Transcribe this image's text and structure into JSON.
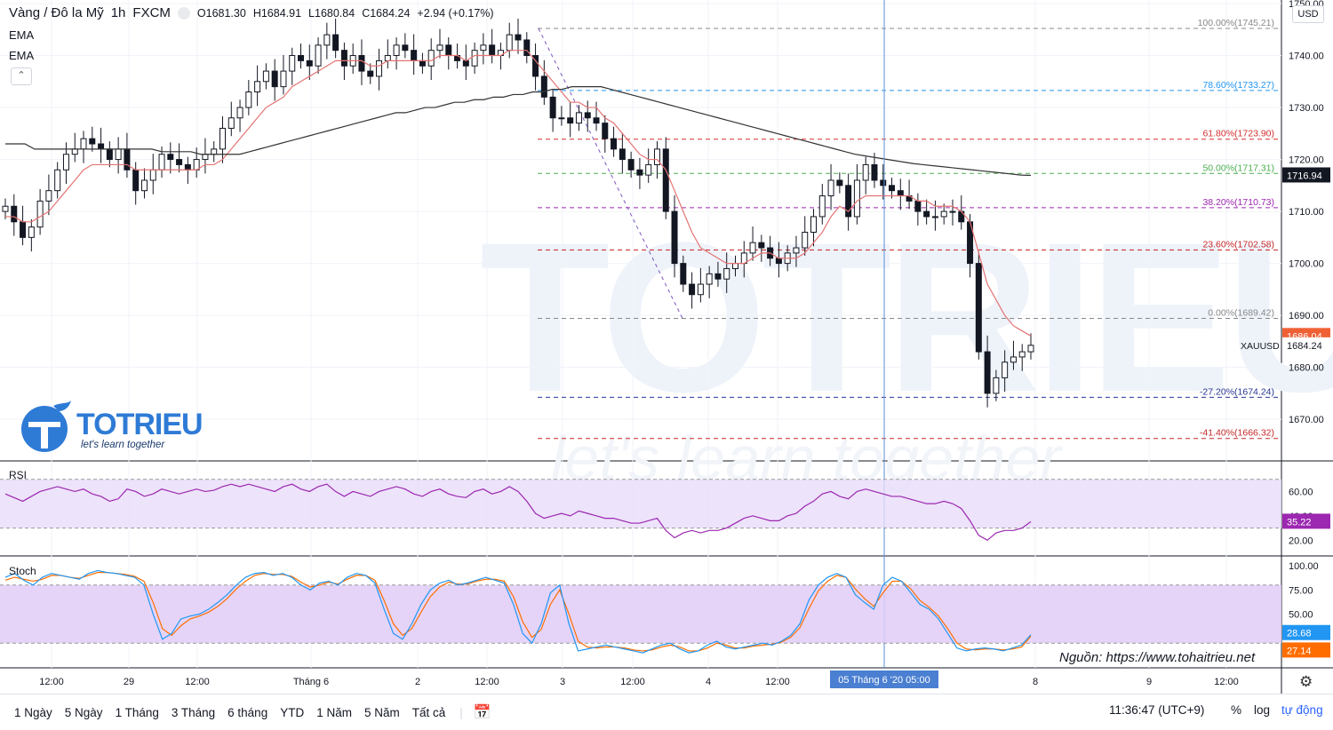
{
  "header": {
    "symbol_name": "Vàng / Đô la Mỹ",
    "interval": "1h",
    "source": "FXCM",
    "open": "O1681.30",
    "high": "H1684.91",
    "low": "L1680.84",
    "close": "C1684.24",
    "change": "+2.94 (+0.17%)"
  },
  "indicators": [
    "EMA",
    "EMA"
  ],
  "currency": "USD",
  "watermark": {
    "brand": "TOTRIEU",
    "tagline": "let's learn together"
  },
  "logo": {
    "brand": "TOTRIEU",
    "tagline": "let's learn together"
  },
  "source_note": "Nguồn: https://www.tohaitrieu.net",
  "toolbar": {
    "ranges": [
      "1 Ngày",
      "5 Ngày",
      "1 Tháng",
      "3 Tháng",
      "6 tháng",
      "YTD",
      "1 Năm",
      "5 Năm",
      "Tất cả"
    ],
    "time": "11:36:47 (UTC+9)",
    "percent": "%",
    "log": "log",
    "auto": "tự động"
  },
  "colors": {
    "up": "#ffffff",
    "down": "#131722",
    "ema_fast": "#e57373",
    "ema_slow": "#333333",
    "rsi": "#9c27b0",
    "rsi_bg": "#e9dcfa",
    "stoch_k": "#2196f3",
    "stoch_d": "#ff6d00",
    "stoch_bg": "#e1cdf7",
    "crosshair": "#5b8fd6",
    "price_tag": "#f06035",
    "rsi_tag": "#9c27b0"
  },
  "chart_data": {
    "type": "candlestick",
    "price_axis": {
      "ticks": [
        "1750.00",
        "1740.00",
        "1730.00",
        "1720.00",
        "1710.00",
        "1700.00",
        "1690.00",
        "1680.00",
        "1670.00"
      ],
      "range": [
        1662,
        1750
      ]
    },
    "time_axis": {
      "labels": [
        "12:00",
        "29",
        "12:00",
        "Tháng 6",
        "2",
        "12:00",
        "3",
        "12:00",
        "4",
        "12:00",
        "8",
        "9",
        "12:00"
      ],
      "crosshair_label": "05 Tháng 6 '20   05:00"
    },
    "price_tags": {
      "ema_slow": "1716.94",
      "ema_fast": "1686.04",
      "last_symbol": "XAUUSD",
      "last_price": "1684.24"
    },
    "fibonacci": [
      {
        "label": "100.00%(1745.21)",
        "price": 1745.21,
        "color": "#888888"
      },
      {
        "label": "78.60%(1733.27)",
        "price": 1733.27,
        "color": "#2196f3"
      },
      {
        "label": "61.80%(1723.90)",
        "price": 1723.9,
        "color": "#d32f2f"
      },
      {
        "label": "50.00%(1717.31)",
        "price": 1717.31,
        "color": "#4caf50"
      },
      {
        "label": "38.20%(1710.73)",
        "price": 1710.73,
        "color": "#9c27b0"
      },
      {
        "label": "23.60%(1702.58)",
        "price": 1702.58,
        "color": "#c62828"
      },
      {
        "label": "0.00%(1689.42)",
        "price": 1689.42,
        "color": "#888888"
      },
      {
        "label": "-27.20%(1674.24)",
        "price": 1674.24,
        "color": "#283593"
      },
      {
        "label": "-41.40%(1666.32)",
        "price": 1666.32,
        "color": "#c62828"
      }
    ],
    "close_series": [
      1711,
      1708,
      1705,
      1707,
      1712,
      1714,
      1718,
      1721,
      1722,
      1724,
      1723,
      1722,
      1720,
      1722,
      1718,
      1714,
      1716,
      1718,
      1721,
      1720,
      1719,
      1718,
      1720,
      1721,
      1722,
      1726,
      1728,
      1730,
      1733,
      1735,
      1737,
      1734,
      1737,
      1740,
      1739,
      1738,
      1742,
      1744,
      1741,
      1738,
      1740,
      1737,
      1736,
      1739,
      1740,
      1742,
      1741,
      1739,
      1738,
      1741,
      1742,
      1740,
      1739,
      1738,
      1741,
      1742,
      1740,
      1741,
      1744,
      1743,
      1740,
      1736,
      1732,
      1728,
      1728,
      1727,
      1729,
      1728,
      1727,
      1724,
      1722,
      1720,
      1718,
      1717,
      1719,
      1722,
      1710,
      1700,
      1696,
      1694,
      1696,
      1698,
      1697,
      1699,
      1700,
      1702,
      1704,
      1703,
      1701,
      1700,
      1702,
      1703,
      1706,
      1709,
      1713,
      1716,
      1715,
      1709,
      1716,
      1719,
      1716,
      1715,
      1714,
      1713,
      1712,
      1710,
      1709,
      1709,
      1710,
      1710,
      1708,
      1700,
      1683,
      1675,
      1678,
      1681,
      1682,
      1683,
      1684.24
    ],
    "ema_fast_series": [
      1709,
      1709,
      1708,
      1708,
      1709,
      1710,
      1712,
      1714,
      1716,
      1718,
      1719,
      1719,
      1719,
      1719,
      1719,
      1718,
      1718,
      1718,
      1718,
      1718,
      1718,
      1718,
      1718,
      1719,
      1719,
      1720,
      1722,
      1724,
      1726,
      1728,
      1730,
      1731,
      1732,
      1734,
      1735,
      1736,
      1737,
      1738,
      1739,
      1739,
      1739,
      1739,
      1738,
      1738,
      1739,
      1739,
      1739,
      1739,
      1739,
      1739,
      1740,
      1740,
      1740,
      1739,
      1740,
      1740,
      1740,
      1740,
      1741,
      1741,
      1741,
      1739,
      1737,
      1735,
      1733,
      1731,
      1731,
      1730,
      1730,
      1728,
      1727,
      1725,
      1723,
      1721,
      1720,
      1720,
      1718,
      1714,
      1710,
      1706,
      1703,
      1702,
      1701,
      1700,
      1700,
      1700,
      1701,
      1702,
      1702,
      1701,
      1701,
      1701,
      1702,
      1704,
      1706,
      1709,
      1711,
      1710,
      1712,
      1713,
      1713,
      1713,
      1713,
      1713,
      1713,
      1712,
      1712,
      1711,
      1711,
      1711,
      1710,
      1708,
      1702,
      1696,
      1693,
      1690,
      1688,
      1687,
      1686.04
    ],
    "ema_slow_series": [
      1723,
      1723,
      1723,
      1722,
      1722,
      1722,
      1722,
      1722,
      1722,
      1722,
      1722,
      1722,
      1722,
      1722,
      1722,
      1722,
      1721.5,
      1721.5,
      1721.5,
      1721.5,
      1721,
      1721,
      1721,
      1721,
      1721,
      1721.5,
      1722,
      1722.5,
      1723,
      1723.5,
      1724,
      1724.5,
      1725,
      1725.5,
      1726,
      1726.5,
      1727,
      1727.5,
      1728,
      1728.5,
      1729,
      1729,
      1729.5,
      1730,
      1730,
      1730.5,
      1731,
      1731,
      1731.5,
      1731.5,
      1732,
      1732,
      1732.5,
      1732.5,
      1733,
      1733,
      1733.5,
      1733.5,
      1734,
      1734,
      1734,
      1734,
      1733.5,
      1733,
      1732.5,
      1732,
      1731.5,
      1731,
      1730.5,
      1730,
      1729.5,
      1729,
      1728.5,
      1728,
      1727.5,
      1727,
      1726.5,
      1726,
      1725.5,
      1725,
      1724.5,
      1724,
      1723.5,
      1723,
      1722.5,
      1722,
      1721.5,
      1721,
      1720.7,
      1720.4,
      1720.1,
      1719.8,
      1719.5,
      1719.2,
      1719,
      1718.8,
      1718.6,
      1718.4,
      1718.2,
      1718,
      1717.8,
      1717.6,
      1717.4,
      1717.2,
      1717,
      1716.94
    ],
    "rsi": {
      "label": "RSI",
      "ticks": [
        "60.00",
        "40.00",
        "20.00"
      ],
      "range": [
        10,
        80
      ],
      "band": [
        30,
        70
      ],
      "last": "35.22",
      "values": [
        58,
        55,
        52,
        56,
        60,
        62,
        64,
        62,
        60,
        62,
        58,
        56,
        52,
        54,
        62,
        60,
        56,
        58,
        62,
        60,
        58,
        60,
        62,
        60,
        61,
        64,
        66,
        64,
        66,
        64,
        62,
        60,
        64,
        66,
        62,
        60,
        64,
        66,
        60,
        56,
        60,
        58,
        56,
        60,
        62,
        64,
        62,
        58,
        56,
        60,
        62,
        58,
        56,
        55,
        60,
        62,
        58,
        60,
        64,
        60,
        52,
        42,
        38,
        40,
        42,
        40,
        44,
        42,
        40,
        38,
        38,
        36,
        34,
        34,
        36,
        38,
        28,
        22,
        26,
        28,
        26,
        28,
        28,
        30,
        34,
        38,
        40,
        38,
        36,
        36,
        40,
        42,
        48,
        52,
        58,
        60,
        56,
        54,
        60,
        62,
        60,
        58,
        56,
        56,
        54,
        52,
        50,
        50,
        52,
        50,
        46,
        36,
        24,
        20,
        26,
        28,
        28,
        30,
        35.22
      ]
    },
    "stoch": {
      "label": "Stoch",
      "ticks": [
        "100.00",
        "75.00",
        "50.00"
      ],
      "range": [
        0,
        100
      ],
      "band": [
        20,
        80
      ],
      "k_last": "28.68",
      "d_last": "27.14",
      "k_values": [
        88,
        92,
        85,
        80,
        88,
        92,
        90,
        88,
        86,
        92,
        95,
        93,
        92,
        90,
        88,
        80,
        50,
        24,
        30,
        45,
        48,
        50,
        55,
        62,
        70,
        80,
        88,
        92,
        93,
        90,
        92,
        88,
        80,
        75,
        82,
        84,
        80,
        88,
        92,
        90,
        82,
        55,
        30,
        24,
        40,
        60,
        75,
        82,
        85,
        80,
        82,
        85,
        88,
        85,
        82,
        60,
        30,
        20,
        40,
        72,
        80,
        40,
        12,
        14,
        16,
        18,
        16,
        14,
        12,
        10,
        14,
        18,
        20,
        14,
        10,
        12,
        18,
        22,
        16,
        14,
        16,
        18,
        20,
        18,
        22,
        28,
        40,
        65,
        80,
        88,
        92,
        88,
        70,
        62,
        55,
        80,
        88,
        84,
        72,
        60,
        55,
        45,
        30,
        15,
        12,
        14,
        15,
        14,
        12,
        15,
        18,
        28.68
      ],
      "d_values": [
        85,
        88,
        86,
        84,
        86,
        90,
        90,
        88,
        87,
        90,
        93,
        93,
        92,
        91,
        89,
        84,
        62,
        35,
        28,
        38,
        45,
        48,
        52,
        58,
        66,
        76,
        84,
        90,
        92,
        91,
        91,
        89,
        83,
        78,
        80,
        83,
        81,
        86,
        90,
        90,
        85,
        64,
        40,
        28,
        35,
        52,
        68,
        78,
        83,
        81,
        81,
        84,
        86,
        86,
        84,
        68,
        42,
        26,
        34,
        60,
        75,
        50,
        22,
        16,
        15,
        16,
        16,
        15,
        13,
        12,
        13,
        16,
        18,
        16,
        12,
        12,
        15,
        20,
        18,
        15,
        15,
        17,
        18,
        19,
        21,
        26,
        36,
        56,
        74,
        84,
        90,
        88,
        76,
        66,
        58,
        72,
        84,
        84,
        76,
        64,
        57,
        48,
        35,
        20,
        14,
        13,
        14,
        14,
        13,
        14,
        16,
        27.14
      ]
    }
  }
}
